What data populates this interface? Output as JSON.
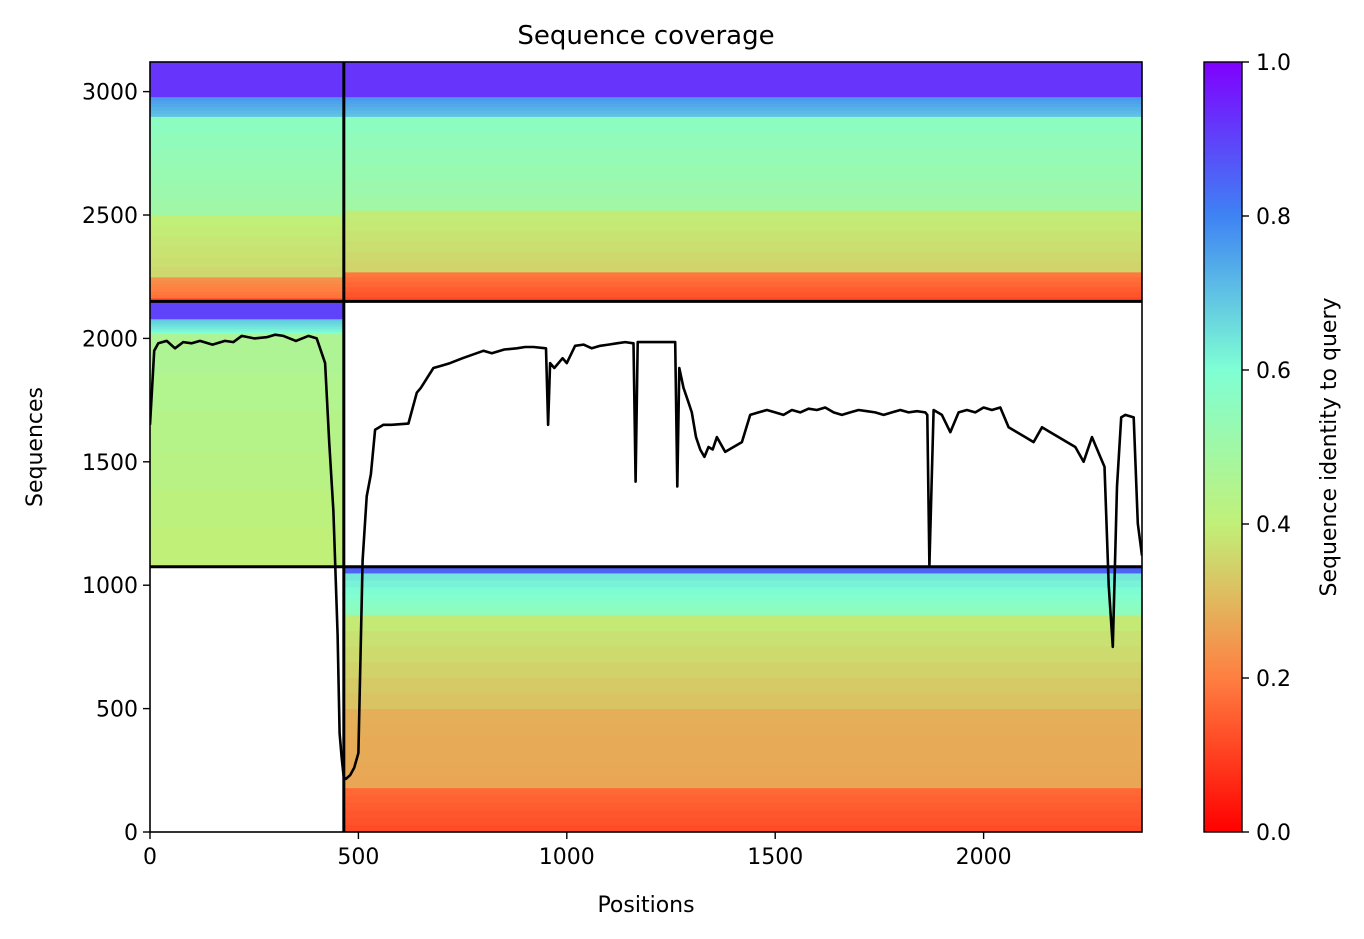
{
  "chart_data": {
    "type": "heatmap",
    "title": "Sequence coverage",
    "xlabel": "Positions",
    "ylabel": "Sequences",
    "xlim": [
      0,
      2380
    ],
    "ylim": [
      0,
      3120
    ],
    "x_ticks": [
      0,
      500,
      1000,
      1500,
      2000
    ],
    "y_ticks": [
      0,
      500,
      1000,
      1500,
      2000,
      2500,
      3000
    ],
    "colormap": "rainbow_r",
    "colorbar": {
      "label": "Sequence identity to query",
      "range": [
        0.0,
        1.0
      ],
      "ticks": [
        "0.0",
        "0.2",
        "0.4",
        "0.6",
        "0.8",
        "1.0"
      ],
      "colors": [
        "#ff0000",
        "#ff7f41",
        "#c1f079",
        "#7fffd4",
        "#3e83f4",
        "#8000ff"
      ]
    },
    "chain_boundaries": {
      "x": 465,
      "y": [
        1075,
        2150
      ]
    },
    "coverage_blocks": [
      {
        "x0": 0,
        "x1": 465,
        "y0": 2150,
        "y1": 3120,
        "bands": [
          {
            "y0": 2150,
            "y1": 2165,
            "identity": 0.1
          },
          {
            "y0": 2165,
            "y1": 2250,
            "identity": 0.18
          },
          {
            "y0": 2250,
            "y1": 2500,
            "identity": 0.36
          },
          {
            "y0": 2500,
            "y1": 2900,
            "identity": 0.5
          },
          {
            "y0": 2900,
            "y1": 2980,
            "identity": 0.7
          },
          {
            "y0": 2980,
            "y1": 3120,
            "identity": 0.92
          }
        ]
      },
      {
        "x0": 465,
        "x1": 2380,
        "y0": 2150,
        "y1": 3120,
        "bands": [
          {
            "y0": 2150,
            "y1": 2270,
            "identity": 0.12
          },
          {
            "y0": 2270,
            "y1": 2520,
            "identity": 0.35
          },
          {
            "y0": 2520,
            "y1": 2900,
            "identity": 0.5
          },
          {
            "y0": 2900,
            "y1": 2980,
            "identity": 0.7
          },
          {
            "y0": 2980,
            "y1": 3120,
            "identity": 0.92
          }
        ]
      },
      {
        "x0": 0,
        "x1": 465,
        "y0": 1075,
        "y1": 2150,
        "bands": [
          {
            "y0": 1075,
            "y1": 2020,
            "identity": 0.4
          },
          {
            "y0": 2020,
            "y1": 2080,
            "identity": 0.6
          },
          {
            "y0": 2080,
            "y1": 2150,
            "identity": 0.9
          }
        ]
      },
      {
        "x0": 465,
        "x1": 2380,
        "y0": 0,
        "y1": 1075,
        "bands": [
          {
            "y0": 0,
            "y1": 180,
            "identity": 0.12
          },
          {
            "y0": 180,
            "y1": 500,
            "identity": 0.27
          },
          {
            "y0": 500,
            "y1": 880,
            "identity": 0.32
          },
          {
            "y0": 880,
            "y1": 1050,
            "identity": 0.55
          },
          {
            "y0": 1050,
            "y1": 1075,
            "identity": 0.85
          }
        ]
      }
    ],
    "coverage_line": {
      "x": [
        0,
        10,
        20,
        40,
        60,
        80,
        100,
        120,
        150,
        180,
        200,
        220,
        250,
        280,
        300,
        320,
        350,
        380,
        400,
        420,
        430,
        440,
        450,
        455,
        460,
        465,
        470,
        480,
        490,
        500,
        510,
        520,
        530,
        540,
        560,
        580,
        620,
        640,
        650,
        680,
        700,
        720,
        750,
        800,
        820,
        850,
        880,
        900,
        920,
        950,
        955,
        960,
        970,
        990,
        1000,
        1020,
        1040,
        1060,
        1080,
        1100,
        1120,
        1140,
        1160,
        1165,
        1170,
        1200,
        1220,
        1240,
        1260,
        1265,
        1270,
        1280,
        1290,
        1300,
        1310,
        1320,
        1330,
        1340,
        1350,
        1360,
        1380,
        1400,
        1420,
        1440,
        1460,
        1480,
        1500,
        1520,
        1540,
        1560,
        1580,
        1600,
        1620,
        1640,
        1660,
        1680,
        1700,
        1720,
        1740,
        1760,
        1780,
        1800,
        1820,
        1840,
        1860,
        1865,
        1870,
        1880,
        1900,
        1920,
        1940,
        1960,
        1980,
        2000,
        2020,
        2040,
        2060,
        2080,
        2100,
        2120,
        2140,
        2160,
        2180,
        2200,
        2220,
        2240,
        2260,
        2280,
        2290,
        2300,
        2310,
        2320,
        2330,
        2340,
        2360,
        2370,
        2380
      ],
      "y": [
        1650,
        1950,
        1980,
        1990,
        1960,
        1985,
        1980,
        1990,
        1975,
        1990,
        1985,
        2010,
        2000,
        2005,
        2015,
        2010,
        1990,
        2010,
        2000,
        1900,
        1580,
        1300,
        800,
        400,
        300,
        220,
        215,
        230,
        260,
        320,
        1100,
        1360,
        1450,
        1630,
        1650,
        1650,
        1655,
        1780,
        1800,
        1880,
        1890,
        1900,
        1920,
        1950,
        1940,
        1955,
        1960,
        1965,
        1965,
        1960,
        1650,
        1900,
        1880,
        1920,
        1900,
        1970,
        1975,
        1960,
        1970,
        1975,
        1980,
        1985,
        1980,
        1420,
        1985,
        1985,
        1985,
        1985,
        1985,
        1400,
        1880,
        1800,
        1750,
        1700,
        1600,
        1550,
        1520,
        1560,
        1550,
        1600,
        1540,
        1560,
        1580,
        1690,
        1700,
        1710,
        1700,
        1690,
        1710,
        1700,
        1715,
        1710,
        1720,
        1700,
        1690,
        1700,
        1710,
        1705,
        1700,
        1690,
        1700,
        1710,
        1700,
        1705,
        1700,
        1690,
        1080,
        1710,
        1690,
        1620,
        1700,
        1710,
        1700,
        1720,
        1710,
        1720,
        1640,
        1620,
        1600,
        1580,
        1640,
        1620,
        1600,
        1580,
        1560,
        1500,
        1600,
        1520,
        1480,
        1000,
        750,
        1400,
        1680,
        1690,
        1680,
        1250,
        1120,
        1100
      ]
    }
  }
}
